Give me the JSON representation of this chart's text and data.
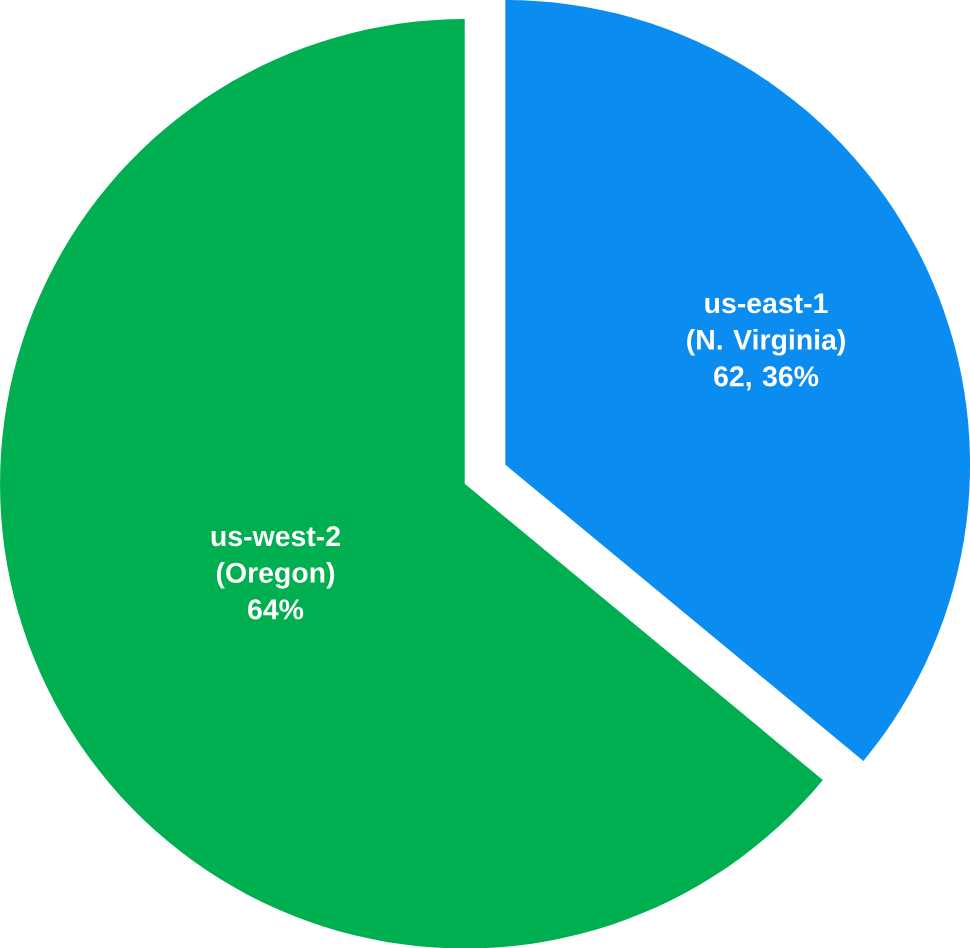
{
  "chart_data": {
    "type": "pie",
    "categories": [
      "us-east-1 (N. Virginia)",
      "us-west-2 (Oregon)"
    ],
    "values": [
      36,
      64
    ],
    "colors": [
      "#0a8cf0",
      "#00b050"
    ],
    "value_labels": [
      "62, 36%",
      "64%"
    ]
  }
}
